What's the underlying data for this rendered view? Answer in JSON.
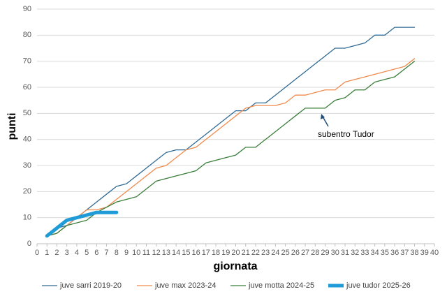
{
  "chart_data": {
    "type": "line",
    "x_label": "giornata",
    "y_label": "punti",
    "annotation": "subentro Tudor",
    "xlim": [
      0,
      40
    ],
    "xticks": [
      0,
      1,
      2,
      3,
      4,
      5,
      6,
      7,
      8,
      9,
      10,
      11,
      12,
      13,
      14,
      15,
      16,
      17,
      18,
      19,
      20,
      21,
      22,
      23,
      24,
      25,
      26,
      27,
      28,
      29,
      30,
      31,
      32,
      33,
      34,
      35,
      36,
      37,
      38,
      39,
      40
    ],
    "ylim": [
      0,
      90
    ],
    "yticks": [
      0,
      10,
      20,
      30,
      40,
      50,
      60,
      70,
      80,
      90
    ],
    "grid": true,
    "legend": "bottom",
    "x": [
      1,
      2,
      3,
      4,
      5,
      6,
      7,
      8,
      9,
      10,
      11,
      12,
      13,
      14,
      15,
      16,
      17,
      18,
      19,
      20,
      21,
      22,
      23,
      24,
      25,
      26,
      27,
      28,
      29,
      30,
      31,
      32,
      33,
      34,
      35,
      36,
      37,
      38
    ],
    "series": [
      {
        "name": "juve sarri 2019-20",
        "color": "#2f6a95",
        "width": 1.3,
        "values": [
          3,
          6,
          7,
          10,
          13,
          16,
          19,
          22,
          23,
          26,
          29,
          32,
          35,
          36,
          36,
          39,
          42,
          45,
          48,
          51,
          51,
          54,
          54,
          57,
          60,
          63,
          66,
          69,
          72,
          75,
          75,
          76,
          77,
          80,
          80,
          83,
          83,
          83
        ]
      },
      {
        "name": "juve max 2023-24",
        "color": "#f08a4b",
        "width": 1.3,
        "values": [
          3,
          4,
          7,
          10,
          13,
          13,
          14,
          17,
          20,
          23,
          26,
          29,
          30,
          33,
          36,
          37,
          40,
          43,
          46,
          49,
          52,
          53,
          53,
          53,
          54,
          57,
          57,
          58,
          59,
          59,
          62,
          63,
          64,
          65,
          66,
          67,
          68,
          71
        ]
      },
      {
        "name": "juve motta 2024-25",
        "color": "#3a7d3a",
        "width": 1.3,
        "values": [
          3,
          4,
          7,
          8,
          9,
          12,
          14,
          16,
          17,
          18,
          21,
          24,
          25,
          26,
          27,
          28,
          31,
          32,
          33,
          34,
          37,
          37,
          40,
          43,
          46,
          49,
          52,
          52,
          52,
          55,
          56,
          59,
          59,
          62,
          63,
          64,
          67,
          70
        ]
      },
      {
        "name": "juve tudor 2025-26",
        "color": "#1f9bd7",
        "width": 5,
        "values": [
          3,
          6,
          9,
          10,
          11,
          12,
          12,
          12,
          null,
          null,
          null,
          null,
          null,
          null,
          null,
          null,
          null,
          null,
          null,
          null,
          null,
          null,
          null,
          null,
          null,
          null,
          null,
          null,
          null,
          null,
          null,
          null,
          null,
          null,
          null,
          null,
          null,
          null
        ]
      }
    ]
  }
}
